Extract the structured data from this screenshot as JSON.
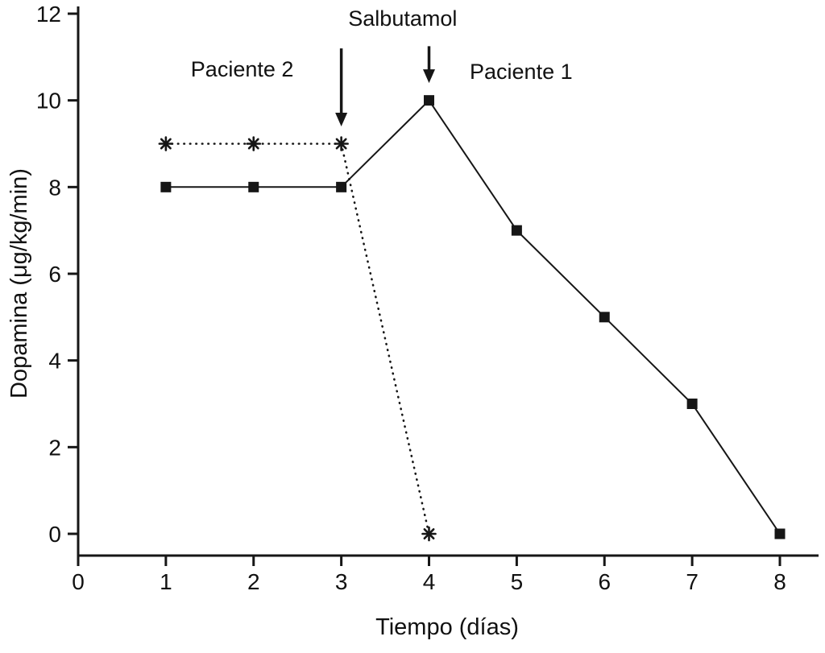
{
  "colors": {
    "ink": "#161616",
    "background": "#ffffff"
  },
  "chart_data": {
    "type": "line",
    "title": "",
    "xlabel": "Tiempo (días)",
    "ylabel": "Dopamina (μg/kg/min)",
    "xlim": [
      0,
      8
    ],
    "ylim": [
      0,
      12
    ],
    "xticks": [
      0,
      1,
      2,
      3,
      4,
      5,
      6,
      7,
      8
    ],
    "yticks": [
      0,
      2,
      4,
      6,
      8,
      10,
      12
    ],
    "grid": false,
    "legend": "none",
    "series": [
      {
        "name": "Paciente 1",
        "marker": "square",
        "line": "solid",
        "x": [
          1,
          2,
          3,
          4,
          5,
          6,
          7,
          8
        ],
        "y": [
          8,
          8,
          8,
          10,
          7,
          5,
          3,
          0
        ]
      },
      {
        "name": "Paciente 2",
        "marker": "asterisk",
        "line": "dotted",
        "x": [
          1,
          2,
          3,
          4
        ],
        "y": [
          9,
          9,
          9,
          0
        ]
      }
    ],
    "annotations": [
      {
        "text": "Salbutamol",
        "x": 3.7,
        "y": 11.72
      },
      {
        "text": "Paciente 2",
        "x": 1.87,
        "y": 10.55
      },
      {
        "text": "Paciente 1",
        "x": 5.05,
        "y": 10.5
      }
    ],
    "arrows": [
      {
        "label": "salbutamol-arrow-day-3",
        "x": 3,
        "y_from": 11.2,
        "y_to": 9.4
      },
      {
        "label": "salbutamol-arrow-day-4",
        "x": 4,
        "y_from": 11.25,
        "y_to": 10.4
      }
    ]
  }
}
